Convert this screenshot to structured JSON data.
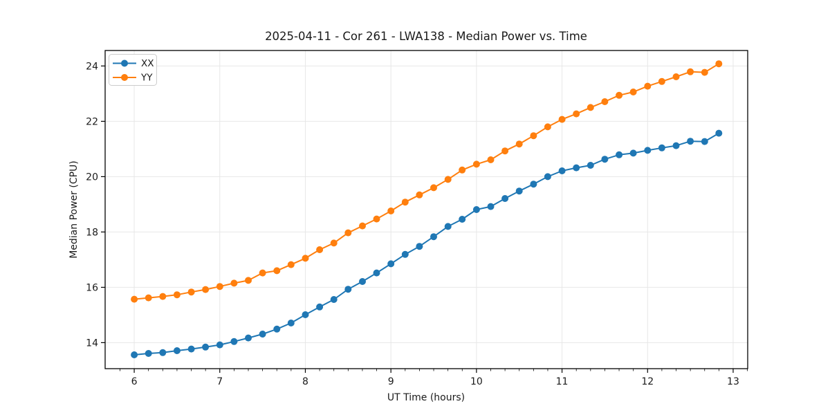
{
  "figure": {
    "background": "#ffffff",
    "accent_blue": "#1f77b4",
    "accent_orange": "#ff7f0e",
    "grid_color": "#e7e7e7",
    "spine_color": "#000000"
  },
  "chart_data": {
    "type": "line",
    "title": "2025-04-11 - Cor 261 - LWA138 - Median Power vs. Time",
    "xlabel": "UT Time (hours)",
    "ylabel": "Median Power (CPU)",
    "xlim": [
      5.66,
      13.17
    ],
    "ylim": [
      13.06,
      24.56
    ],
    "x_ticks": [
      6,
      7,
      8,
      9,
      10,
      11,
      12,
      13
    ],
    "y_ticks": [
      14,
      16,
      18,
      20,
      22,
      24
    ],
    "x_minor_tick_step": 0.16667,
    "grid": true,
    "legend_position": "upper left",
    "marker": "circle",
    "x": [
      6.0,
      6.167,
      6.333,
      6.5,
      6.667,
      6.833,
      7.0,
      7.167,
      7.333,
      7.5,
      7.667,
      7.833,
      8.0,
      8.167,
      8.333,
      8.5,
      8.667,
      8.833,
      9.0,
      9.167,
      9.333,
      9.5,
      9.667,
      9.833,
      10.0,
      10.167,
      10.333,
      10.5,
      10.667,
      10.833,
      11.0,
      11.167,
      11.333,
      11.5,
      11.667,
      11.833,
      12.0,
      12.167,
      12.333,
      12.5,
      12.667,
      12.833
    ],
    "series": [
      {
        "name": "XX",
        "color": "#1f77b4",
        "values": [
          13.56,
          13.61,
          13.64,
          13.71,
          13.77,
          13.84,
          13.92,
          14.04,
          14.17,
          14.31,
          14.49,
          14.71,
          15.01,
          15.29,
          15.56,
          15.93,
          16.21,
          16.52,
          16.85,
          17.19,
          17.48,
          17.83,
          18.2,
          18.46,
          18.81,
          18.92,
          19.21,
          19.48,
          19.73,
          20.0,
          20.21,
          20.32,
          20.41,
          20.63,
          20.79,
          20.85,
          20.95,
          21.04,
          21.12,
          21.28,
          21.27,
          21.57
        ]
      },
      {
        "name": "YY",
        "color": "#ff7f0e",
        "values": [
          15.57,
          15.62,
          15.67,
          15.73,
          15.83,
          15.92,
          16.03,
          16.15,
          16.25,
          16.52,
          16.6,
          16.82,
          17.05,
          17.36,
          17.6,
          17.97,
          18.22,
          18.47,
          18.76,
          19.08,
          19.34,
          19.6,
          19.9,
          20.24,
          20.45,
          20.61,
          20.93,
          21.18,
          21.48,
          21.8,
          22.07,
          22.27,
          22.5,
          22.71,
          22.94,
          23.06,
          23.27,
          23.44,
          23.61,
          23.79,
          23.77,
          24.08
        ]
      }
    ]
  }
}
